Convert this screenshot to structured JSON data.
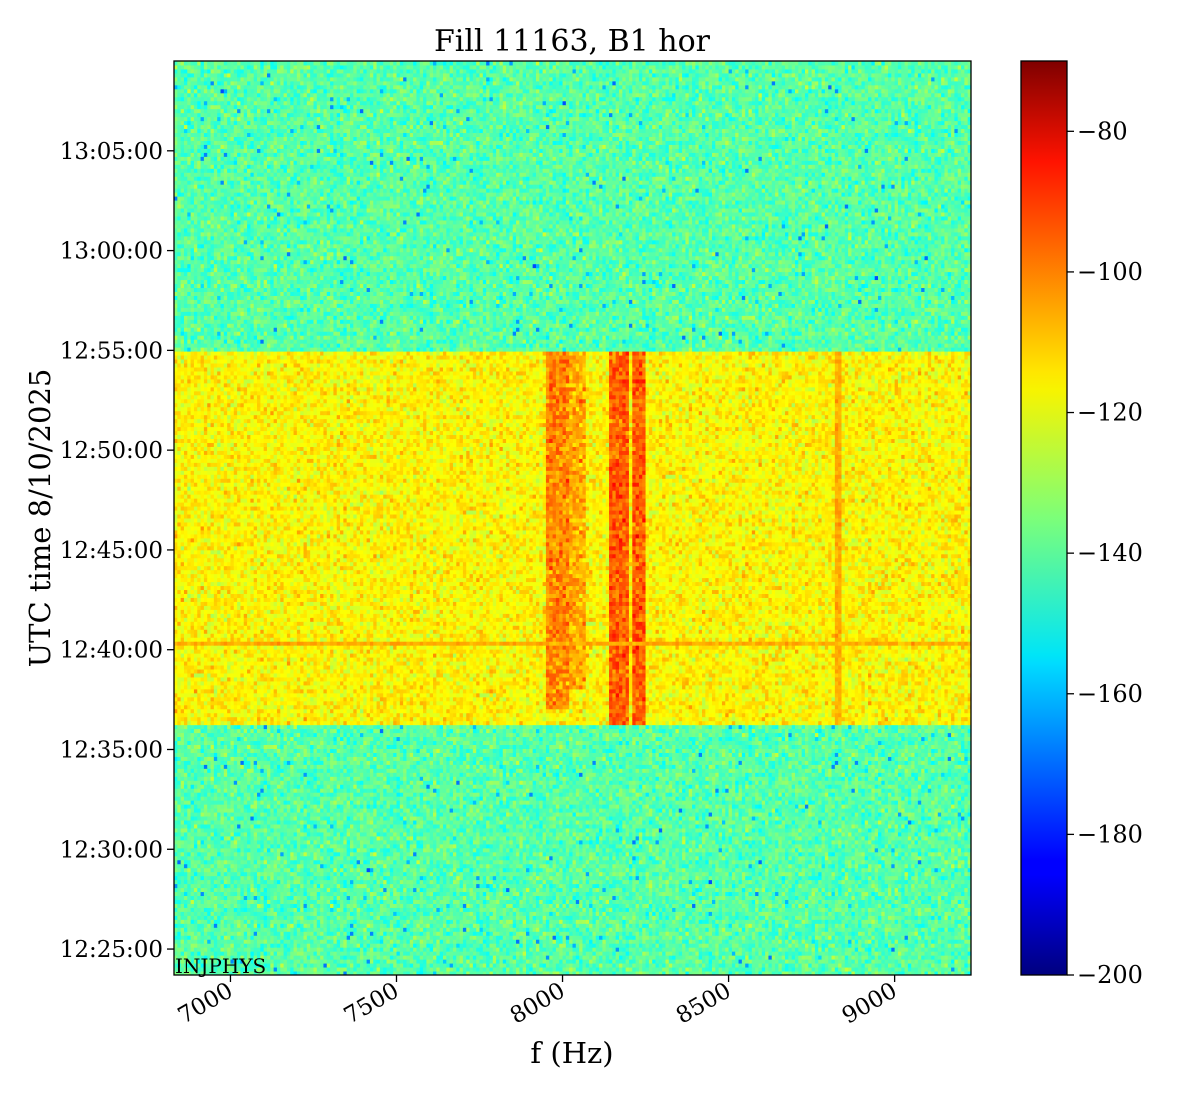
{
  "chart_data": {
    "type": "heatmap",
    "title": "Fill 11163, B1 hor",
    "xlabel": "f (Hz)",
    "ylabel": "UTC time 8/10/2025",
    "corner_label": "INJPHYS",
    "x_range": [
      6830,
      9230
    ],
    "x_ticks": [
      {
        "value": 7000,
        "label": "7000"
      },
      {
        "value": 7500,
        "label": "7500"
      },
      {
        "value": 8000,
        "label": "8000"
      },
      {
        "value": 8500,
        "label": "8500"
      },
      {
        "value": 9000,
        "label": "9000"
      }
    ],
    "y_range_minutes": [
      743.7,
      789.5
    ],
    "y_ticks": [
      {
        "value": 745,
        "label": "12:25:00"
      },
      {
        "value": 750,
        "label": "12:30:00"
      },
      {
        "value": 755,
        "label": "12:35:00"
      },
      {
        "value": 760,
        "label": "12:40:00"
      },
      {
        "value": 765,
        "label": "12:45:00"
      },
      {
        "value": 770,
        "label": "12:50:00"
      },
      {
        "value": 775,
        "label": "12:55:00"
      },
      {
        "value": 780,
        "label": "13:00:00"
      },
      {
        "value": 785,
        "label": "13:05:00"
      }
    ],
    "colorbar": {
      "colormap": "jet",
      "range": [
        -200,
        -70
      ],
      "ticks": [
        {
          "value": -80,
          "label": "−80"
        },
        {
          "value": -100,
          "label": "−100"
        },
        {
          "value": -120,
          "label": "−120"
        },
        {
          "value": -140,
          "label": "−140"
        },
        {
          "value": -160,
          "label": "−160"
        },
        {
          "value": -180,
          "label": "−180"
        },
        {
          "value": -200,
          "label": "−200"
        }
      ]
    },
    "background_level": -140,
    "beam_period": {
      "start": "12:36:20",
      "end": "12:55:00",
      "level": -118
    },
    "features": [
      {
        "name": "broadband enhancement",
        "x_range": [
          6830,
          9230
        ],
        "time_range": [
          "12:36:20",
          "12:55:00"
        ],
        "level": -118
      },
      {
        "name": "line band",
        "x_range": [
          7950,
          8020
        ],
        "time_range": [
          "12:37:00",
          "12:55:00"
        ],
        "level": -103
      },
      {
        "name": "line band",
        "x_range": [
          8020,
          8070
        ],
        "time_range": [
          "12:38:00",
          "12:55:00"
        ],
        "level": -108
      },
      {
        "name": "line band",
        "x_range": [
          8140,
          8165
        ],
        "time_range": [
          "12:36:20",
          "12:55:00"
        ],
        "level": -98
      },
      {
        "name": "line band",
        "x_range": [
          8175,
          8200
        ],
        "time_range": [
          "12:36:20",
          "12:55:00"
        ],
        "level": -98
      },
      {
        "name": "line band",
        "x_range": [
          8215,
          8245
        ],
        "time_range": [
          "12:36:20",
          "12:55:00"
        ],
        "level": -98
      },
      {
        "name": "narrow line",
        "x_value": 8830,
        "time_range": [
          "12:36:20",
          "12:55:00"
        ],
        "level": -108
      },
      {
        "name": "horizontal line",
        "time": "12:40:15",
        "level": -108
      }
    ]
  }
}
